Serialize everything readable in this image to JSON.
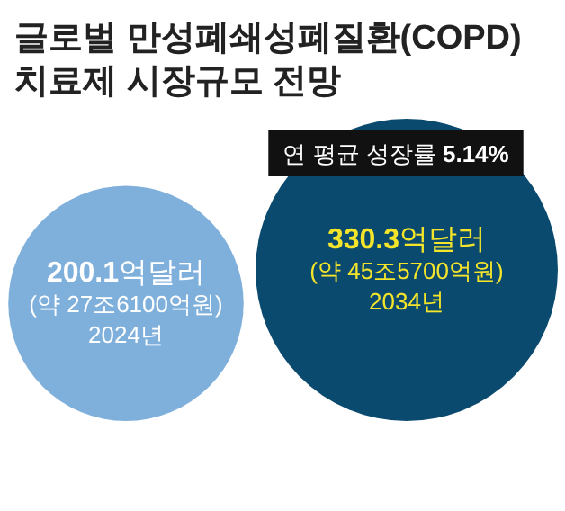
{
  "chart_data": {
    "type": "other",
    "title": "글로벌 만성폐쇄성폐질환(COPD) 치료제 시장규모 전망",
    "categories": [
      "2024년",
      "2034년"
    ],
    "values": [
      200.1,
      330.3
    ],
    "value_labels": [
      "**200.1**억달러",
      "**330.3**억달러"
    ],
    "colors": [
      "#7fb0dc",
      "#0b4a6f"
    ],
    "annotations": [
      {
        "text": "(약 27조6100억원)",
        "x": "2024년"
      },
      {
        "text": "(약 45조5700억원)",
        "x": "2034년"
      },
      "연 평균 성장률 **5.14%**"
    ]
  }
}
